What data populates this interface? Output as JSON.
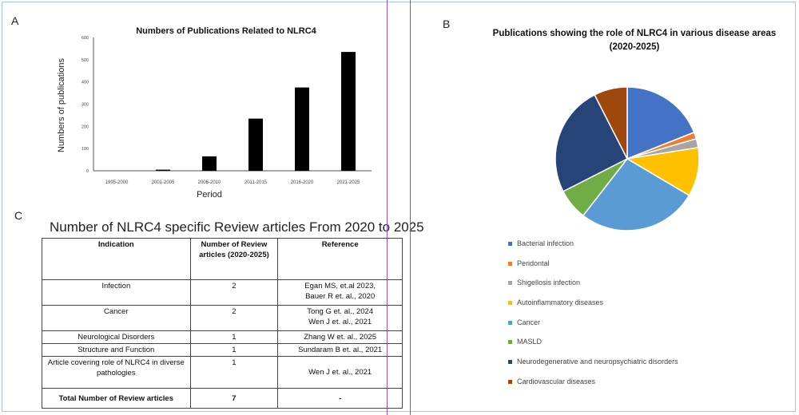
{
  "panels": {
    "a": "A",
    "b": "B",
    "c": "C"
  },
  "chart_data": [
    {
      "type": "bar",
      "title": "Numbers of Publications Related to NLRC4",
      "xlabel": "Period",
      "ylabel": "Numbers of publications",
      "categories": [
        "1995-2000",
        "2001-2005",
        "2006-2010",
        "2011-2015",
        "2016-2020",
        "2021-2025"
      ],
      "values": [
        0,
        5,
        65,
        235,
        375,
        535
      ],
      "ylim": [
        0,
        600
      ],
      "yticks": [
        0,
        100,
        200,
        300,
        400,
        500,
        600
      ],
      "color": "#000000",
      "grid": false
    },
    {
      "type": "pie",
      "title": "Publications showing the role of NLRC4 in various disease areas",
      "subtitle": "(2020-2025)",
      "legend_position": "below",
      "series": [
        {
          "name": "Bacterial infection",
          "value": 19,
          "color": "#4472c4"
        },
        {
          "name": "Peridontal",
          "value": 1.5,
          "color": "#ed7d31"
        },
        {
          "name": "Shigellosis infection",
          "value": 2,
          "color": "#a5a5a5"
        },
        {
          "name": "Autoinflammatory diseases",
          "value": 11,
          "color": "#ffc000"
        },
        {
          "name": "Cancer",
          "value": 27,
          "color": "#5b9bd5"
        },
        {
          "name": "MASLD",
          "value": 7,
          "color": "#70ad47"
        },
        {
          "name": "Neurodegenerative and neuropsychiatric disorders",
          "value": 25,
          "color": "#264478"
        },
        {
          "name": "Cardiovascular diseases",
          "value": 7.5,
          "color": "#9e480e"
        }
      ]
    },
    {
      "type": "table",
      "title": "Number of NLRC4 specific Review articles From 2020 to 2025",
      "headers": {
        "indication": "Indication",
        "count": "Number of Review articles (2020-2025)",
        "reference": "Reference"
      },
      "rows": [
        {
          "indication": "Infection",
          "count": "2",
          "reference": [
            "Egan MS, et.al 2023,",
            "Bauer R et. al., 2020"
          ]
        },
        {
          "indication": "Cancer",
          "count": "2",
          "reference": [
            "Tong G et. al., 2024",
            "Wen J et. al., 2021"
          ]
        },
        {
          "indication": "Neurological Disorders",
          "count": "1",
          "reference": [
            "Zhang W et. al., 2025"
          ]
        },
        {
          "indication": "Structure and Function",
          "count": "1",
          "reference": [
            "Sundaram B et. al., 2021"
          ]
        },
        {
          "indication": "Article covering role of NLRC4 in diverse pathologies",
          "count": "1",
          "reference": [
            "Wen J et. al., 2021"
          ]
        }
      ],
      "total": {
        "label": "Total Number of Review articles",
        "count": "7",
        "reference": "-"
      }
    }
  ]
}
